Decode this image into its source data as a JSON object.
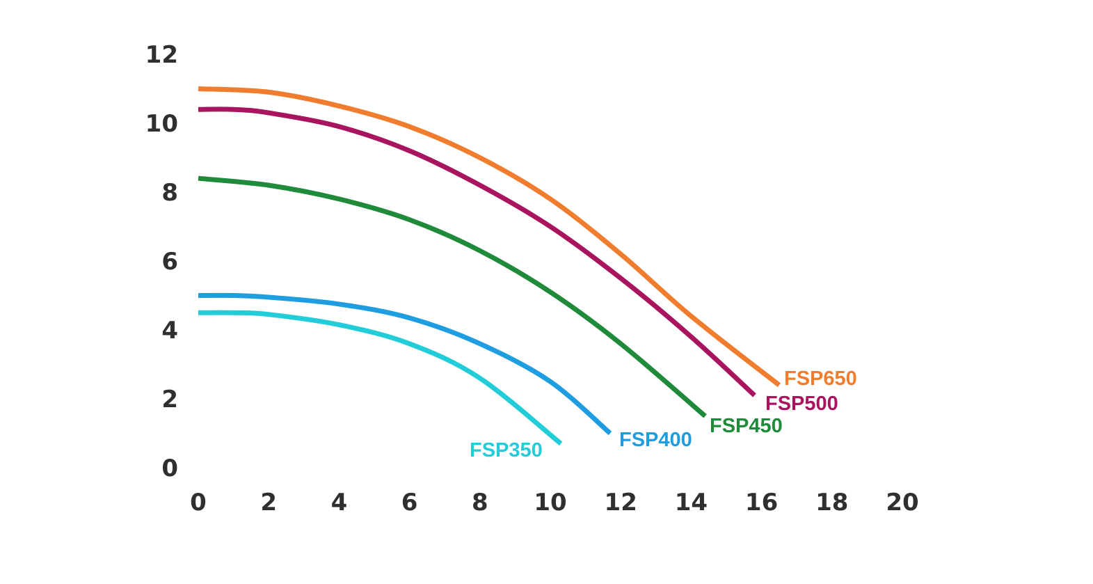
{
  "chart_data": {
    "type": "line",
    "title": "",
    "xlabel": "",
    "ylabel": "",
    "xlim": [
      0,
      20
    ],
    "ylim": [
      0,
      12
    ],
    "x_ticks": [
      "0",
      "2",
      "4",
      "6",
      "8",
      "10",
      "12",
      "14",
      "16",
      "18",
      "20"
    ],
    "y_ticks": [
      "0",
      "2",
      "4",
      "6",
      "8",
      "10",
      "12"
    ],
    "grid": false,
    "legend": "inline labels at curve ends",
    "series": [
      {
        "name": "FSP650",
        "color": "#F07C2D",
        "points": [
          [
            0,
            11.0
          ],
          [
            2,
            10.9
          ],
          [
            4,
            10.5
          ],
          [
            6,
            9.9
          ],
          [
            8,
            9.0
          ],
          [
            10,
            7.8
          ],
          [
            12,
            6.2
          ],
          [
            14,
            4.4
          ],
          [
            16.5,
            2.4
          ]
        ]
      },
      {
        "name": "FSP500",
        "color": "#A8155E",
        "points": [
          [
            0,
            10.4
          ],
          [
            1,
            10.4
          ],
          [
            2,
            10.3
          ],
          [
            4,
            9.9
          ],
          [
            6,
            9.2
          ],
          [
            8,
            8.2
          ],
          [
            10,
            7.0
          ],
          [
            12,
            5.5
          ],
          [
            14,
            3.8
          ],
          [
            15.8,
            2.1
          ]
        ]
      },
      {
        "name": "FSP450",
        "color": "#1F8A3A",
        "points": [
          [
            0,
            8.4
          ],
          [
            2,
            8.2
          ],
          [
            4,
            7.8
          ],
          [
            6,
            7.2
          ],
          [
            8,
            6.3
          ],
          [
            10,
            5.1
          ],
          [
            12,
            3.6
          ],
          [
            14.4,
            1.5
          ]
        ]
      },
      {
        "name": "FSP400",
        "color": "#1E9DE0",
        "points": [
          [
            0,
            5.0
          ],
          [
            1,
            5.0
          ],
          [
            2,
            4.95
          ],
          [
            4,
            4.75
          ],
          [
            6,
            4.35
          ],
          [
            8,
            3.6
          ],
          [
            10,
            2.5
          ],
          [
            11.7,
            1.0
          ]
        ]
      },
      {
        "name": "FSP350",
        "color": "#22CDD9",
        "points": [
          [
            0,
            4.5
          ],
          [
            1,
            4.5
          ],
          [
            2,
            4.45
          ],
          [
            4,
            4.15
          ],
          [
            6,
            3.6
          ],
          [
            8,
            2.6
          ],
          [
            10.3,
            0.7
          ]
        ]
      }
    ]
  }
}
